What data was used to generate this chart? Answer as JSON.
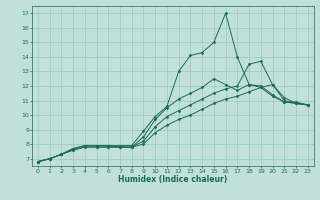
{
  "xlabel": "Humidex (Indice chaleur)",
  "bg_color": "#c2e0da",
  "grid_color": "#96c8c0",
  "line_color": "#1a6b5a",
  "xlim": [
    -0.5,
    23.5
  ],
  "ylim": [
    6.5,
    17.5
  ],
  "yticks": [
    7,
    8,
    9,
    10,
    11,
    12,
    13,
    14,
    15,
    16,
    17
  ],
  "xticks": [
    0,
    1,
    2,
    3,
    4,
    5,
    6,
    7,
    8,
    9,
    10,
    11,
    12,
    13,
    14,
    15,
    16,
    17,
    18,
    19,
    20,
    21,
    22,
    23
  ],
  "series": [
    {
      "x": [
        0,
        1,
        2,
        3,
        4,
        5,
        6,
        7,
        8,
        9,
        10,
        11,
        12,
        13,
        14,
        15,
        16,
        17,
        18,
        19,
        20,
        21,
        22,
        23
      ],
      "y": [
        6.8,
        7.0,
        7.3,
        7.7,
        7.9,
        7.9,
        7.9,
        7.9,
        7.9,
        8.9,
        9.9,
        10.6,
        13.0,
        14.1,
        14.3,
        15.0,
        17.0,
        14.0,
        12.1,
        12.0,
        11.4,
        10.9,
        10.9,
        10.7
      ]
    },
    {
      "x": [
        0,
        1,
        2,
        3,
        4,
        5,
        6,
        7,
        8,
        9,
        10,
        11,
        12,
        13,
        14,
        15,
        16,
        17,
        18,
        19,
        20,
        21,
        22,
        23
      ],
      "y": [
        6.8,
        7.0,
        7.3,
        7.7,
        7.9,
        7.9,
        7.9,
        7.8,
        7.8,
        8.5,
        9.7,
        10.5,
        11.1,
        11.5,
        11.9,
        12.5,
        12.1,
        11.7,
        12.1,
        11.9,
        11.3,
        10.9,
        10.8,
        10.7
      ]
    },
    {
      "x": [
        0,
        1,
        2,
        3,
        4,
        5,
        6,
        7,
        8,
        9,
        10,
        11,
        12,
        13,
        14,
        15,
        16,
        17,
        18,
        19,
        20,
        21,
        22,
        23
      ],
      "y": [
        6.8,
        7.0,
        7.3,
        7.6,
        7.8,
        7.8,
        7.8,
        7.8,
        7.8,
        8.2,
        9.2,
        9.9,
        10.3,
        10.7,
        11.1,
        11.5,
        11.8,
        12.0,
        13.5,
        13.7,
        12.1,
        11.0,
        10.8,
        10.7
      ]
    },
    {
      "x": [
        0,
        1,
        2,
        3,
        4,
        5,
        6,
        7,
        8,
        9,
        10,
        11,
        12,
        13,
        14,
        15,
        16,
        17,
        18,
        19,
        20,
        21,
        22,
        23
      ],
      "y": [
        6.8,
        7.0,
        7.3,
        7.6,
        7.8,
        7.8,
        7.8,
        7.8,
        7.8,
        8.0,
        8.8,
        9.3,
        9.7,
        10.0,
        10.4,
        10.8,
        11.1,
        11.3,
        11.6,
        11.9,
        12.1,
        11.2,
        10.8,
        10.7
      ]
    }
  ]
}
